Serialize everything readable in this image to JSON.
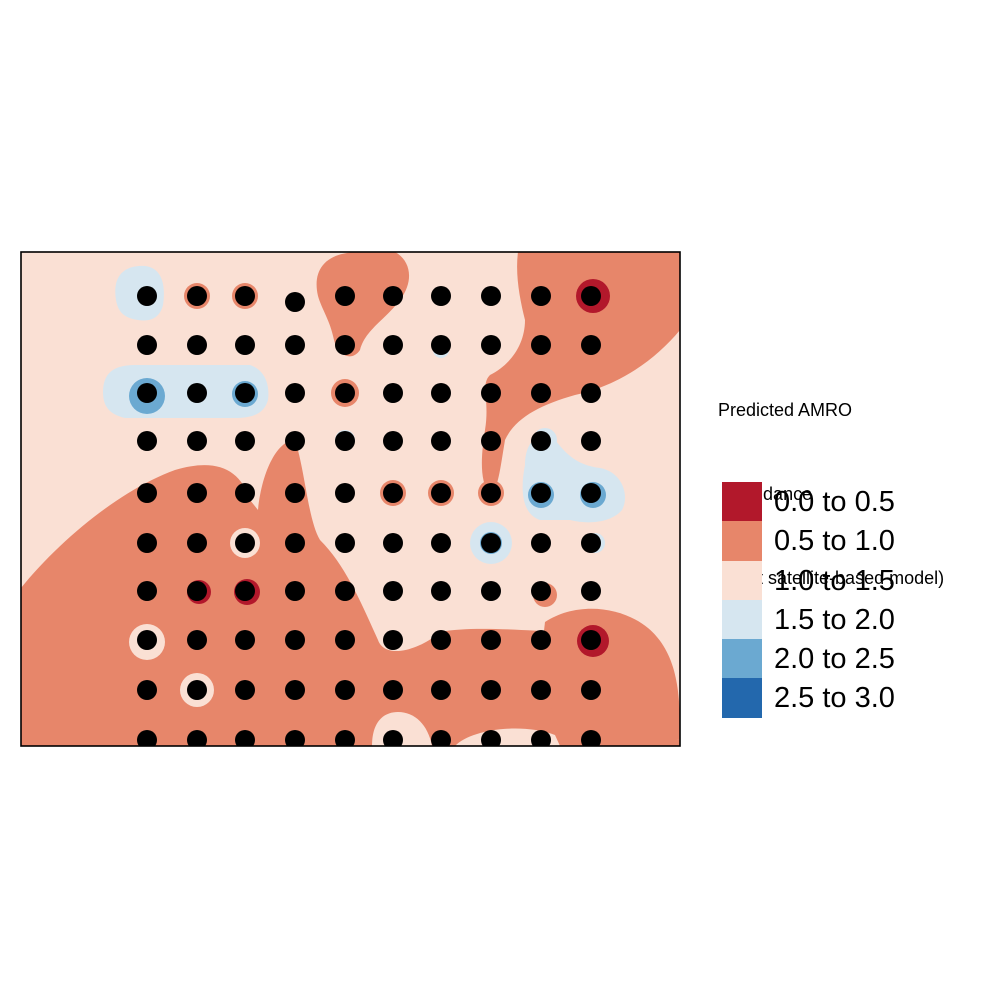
{
  "map": {
    "background_class": "1.0 to 1.5",
    "observation_points": "sampling site grid, 10 columns x 10 rows"
  },
  "legend": {
    "title_lines": [
      "Predicted AMRO",
      " abundance",
      " (best satellite-based model)"
    ],
    "classes": [
      {
        "label": "0.0 to 0.5",
        "color": "#b2182b"
      },
      {
        "label": "0.5 to 1.0",
        "color": "#e7866a"
      },
      {
        "label": "1.0 to 1.5",
        "color": "#fae0d4"
      },
      {
        "label": "1.5 to 2.0",
        "color": "#d6e6f0"
      },
      {
        "label": "2.0 to 2.5",
        "color": "#6ba9d1"
      },
      {
        "label": "2.5 to 3.0",
        "color": "#2368ad"
      }
    ]
  }
}
